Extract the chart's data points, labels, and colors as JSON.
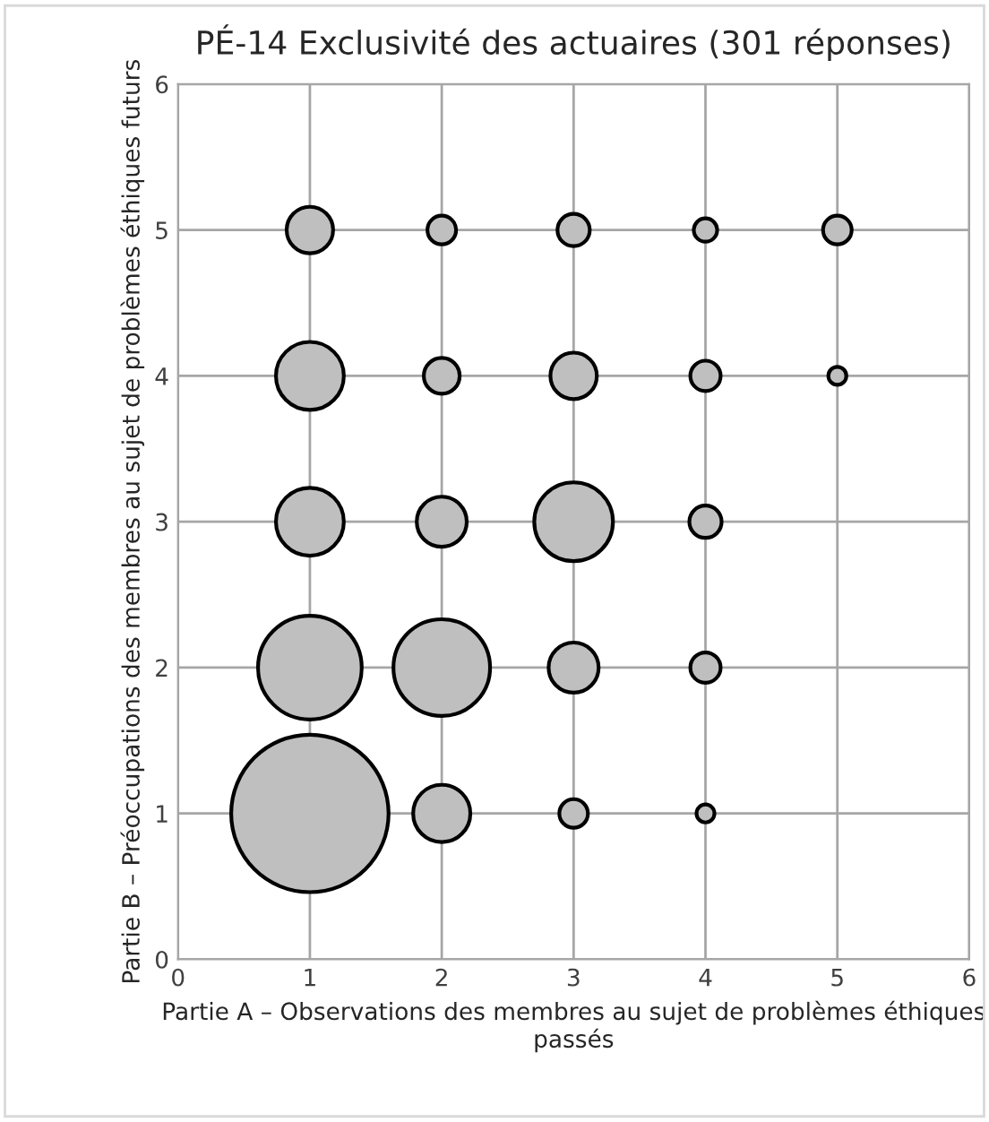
{
  "chart_data": {
    "type": "bubble",
    "title": "PÉ-14 Exclusivité des actuaires (301 réponses)",
    "xlabel": "Partie A – Observations des membres au sujet de problèmes éthiques passés",
    "ylabel": "Partie B – Préoccupations des membres au sujet de problèmes éthiques futurs",
    "x": [
      1,
      2,
      3,
      4,
      1,
      2,
      3,
      4,
      1,
      2,
      3,
      4,
      1,
      2,
      3,
      4,
      5,
      1,
      2,
      3,
      4,
      5
    ],
    "values": [
      1,
      1,
      1,
      1,
      2,
      2,
      2,
      2,
      3,
      3,
      3,
      3,
      4,
      4,
      4,
      4,
      4,
      5,
      5,
      5,
      5,
      5
    ],
    "sizes": [
      1,
      0.132,
      0.033,
      0.013,
      0.434,
      0.377,
      0.101,
      0.037,
      0.186,
      0.101,
      0.25,
      0.042,
      0.186,
      0.052,
      0.087,
      0.037,
      0.013,
      0.087,
      0.033,
      0.042,
      0.022,
      0.033
    ],
    "color": "#bfbfbf",
    "xlim": [
      0,
      6
    ],
    "ylim": [
      0,
      6
    ],
    "xticks": [
      0,
      1,
      2,
      3,
      4,
      5,
      6
    ],
    "yticks": [
      0,
      1,
      2,
      3,
      4,
      5,
      6
    ],
    "grid": true,
    "legend": false
  }
}
